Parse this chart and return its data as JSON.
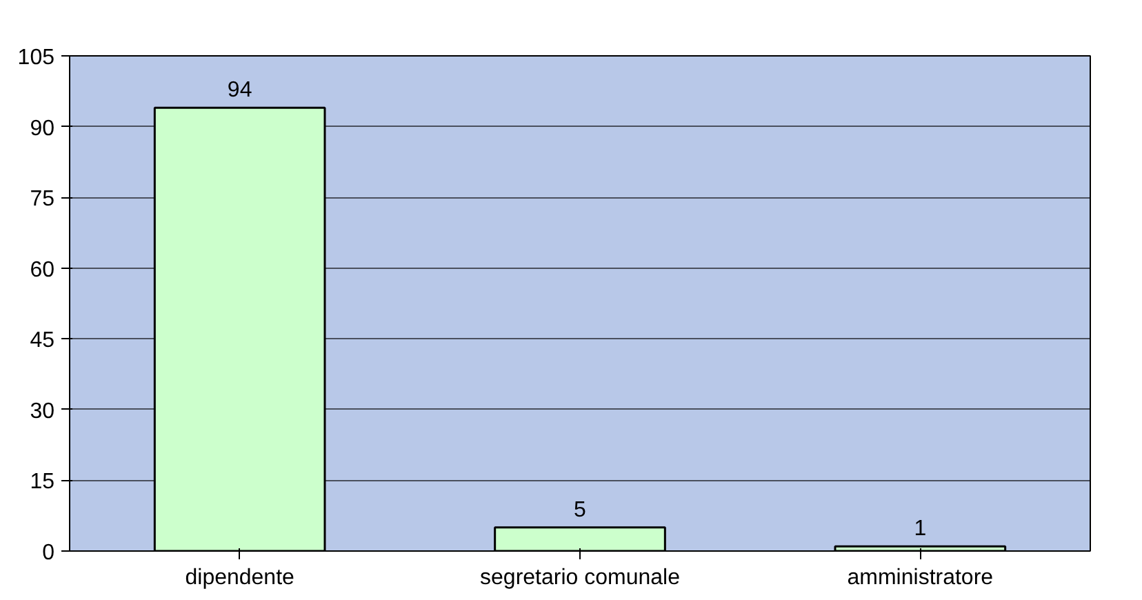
{
  "chart_data": {
    "type": "bar",
    "categories": [
      "dipendente",
      "segretario comunale",
      "amministratore"
    ],
    "values": [
      94,
      5,
      1
    ],
    "color": "#ccffcc",
    "ylim": [
      0,
      105
    ],
    "yticks": [
      0,
      15,
      30,
      45,
      60,
      75,
      90,
      105
    ],
    "grid": "y",
    "data_labels": true
  }
}
